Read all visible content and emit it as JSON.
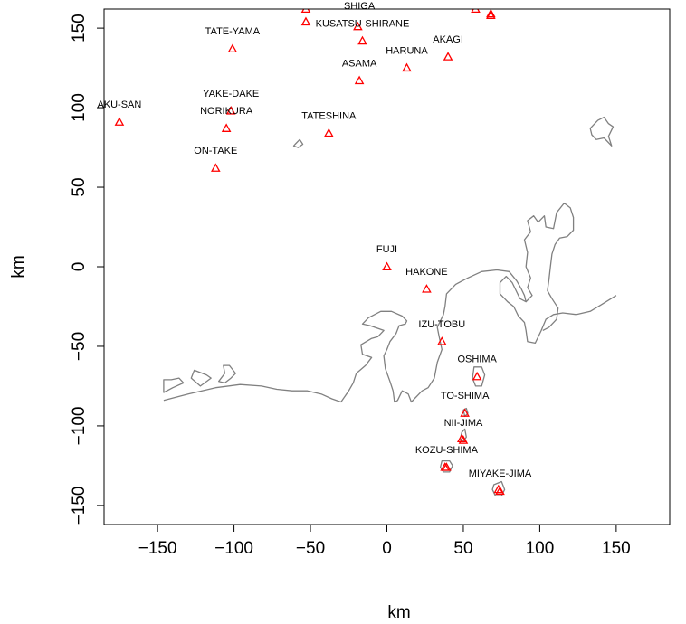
{
  "chart_data": {
    "type": "scatter",
    "xlabel": "km",
    "ylabel": "km",
    "xlim": [
      -185,
      185
    ],
    "ylim": [
      -162,
      162
    ],
    "x_ticks": [
      -150,
      -100,
      -50,
      0,
      50,
      100,
      150
    ],
    "y_ticks": [
      -150,
      -100,
      -50,
      0,
      50,
      100,
      150
    ],
    "tick_labels_x": [
      "−150",
      "−100",
      "−50",
      "0",
      "50",
      "100",
      "150"
    ],
    "tick_labels_y": [
      "−150",
      "−100",
      "−50",
      "0",
      "50",
      "100",
      "150"
    ],
    "marker_color": "#ff0000",
    "coast_color": "#808080",
    "volcanoes": [
      {
        "name": "SHIGA",
        "x": -53,
        "y": 162,
        "lx": -18,
        "ly": 162
      },
      {
        "name": "",
        "x": 58,
        "y": 162,
        "lx": 58,
        "ly": 168
      },
      {
        "name": "",
        "x": 68,
        "y": 159,
        "lx": 68,
        "ly": 168
      },
      {
        "name": "",
        "x": 68,
        "y": 158,
        "lx": 68,
        "ly": 168
      },
      {
        "name": "KUSATSU-SHIRANE",
        "x": -53,
        "y": 154,
        "lx": -16,
        "ly": 151
      },
      {
        "name": "",
        "x": -19,
        "y": 151,
        "lx": -19,
        "ly": 168
      },
      {
        "name": "",
        "x": -16,
        "y": 142,
        "lx": -16,
        "ly": 168
      },
      {
        "name": "TATE-YAMA",
        "x": -101,
        "y": 137,
        "lx": -101,
        "ly": 146
      },
      {
        "name": "AKAGI",
        "x": 40,
        "y": 132,
        "lx": 40,
        "ly": 141
      },
      {
        "name": "HARUNA",
        "x": 13,
        "y": 125,
        "lx": 13,
        "ly": 134
      },
      {
        "name": "ASAMA",
        "x": -18,
        "y": 117,
        "lx": -18,
        "ly": 126
      },
      {
        "name": "YAKE-DAKE",
        "x": -102,
        "y": 98,
        "lx": -102,
        "ly": 107
      },
      {
        "name": "AKU-SAN",
        "x": -175,
        "y": 91,
        "lx": -175,
        "ly": 100
      },
      {
        "name": "NORIKURA",
        "x": -105,
        "y": 87,
        "lx": -105,
        "ly": 96
      },
      {
        "name": "TATESHINA",
        "x": -38,
        "y": 84,
        "lx": -38,
        "ly": 93
      },
      {
        "name": "ON-TAKE",
        "x": -112,
        "y": 62,
        "lx": -112,
        "ly": 71
      },
      {
        "name": "FUJI",
        "x": 0,
        "y": 0,
        "lx": 0,
        "ly": 9
      },
      {
        "name": "HAKONE",
        "x": 26,
        "y": -14,
        "lx": 26,
        "ly": -5
      },
      {
        "name": "IZU-TOBU",
        "x": 36,
        "y": -47,
        "lx": 36,
        "ly": -38
      },
      {
        "name": "OSHIMA",
        "x": 59,
        "y": -69,
        "lx": 59,
        "ly": -60
      },
      {
        "name": "TO-SHIMA",
        "x": 51,
        "y": -92,
        "lx": 51,
        "ly": -83
      },
      {
        "name": "NII-JIMA",
        "x": 50,
        "y": -109,
        "lx": 50,
        "ly": -100
      },
      {
        "name": "",
        "x": 49,
        "y": -108,
        "lx": 49,
        "ly": -168
      },
      {
        "name": "KOZU-SHIMA",
        "x": 39,
        "y": -126,
        "lx": 39,
        "ly": -117
      },
      {
        "name": "",
        "x": 38,
        "y": -126,
        "lx": 38,
        "ly": -168
      },
      {
        "name": "MIYAKE-JIMA",
        "x": 74,
        "y": -141,
        "lx": 74,
        "ly": -132
      },
      {
        "name": "",
        "x": 73,
        "y": -140,
        "lx": 73,
        "ly": -168
      }
    ],
    "coastlines": [
      [
        [
          -146,
          -84
        ],
        [
          -130,
          -80
        ],
        [
          -112,
          -76
        ],
        [
          -96,
          -74
        ],
        [
          -82,
          -75
        ],
        [
          -72,
          -77
        ],
        [
          -62,
          -78
        ],
        [
          -52,
          -78
        ],
        [
          -43,
          -80
        ],
        [
          -36,
          -83
        ],
        [
          -30,
          -85
        ],
        [
          -25,
          -78
        ],
        [
          -22,
          -73
        ],
        [
          -20,
          -67
        ],
        [
          -14,
          -62
        ],
        [
          -10,
          -57
        ],
        [
          -16,
          -55
        ],
        [
          -17,
          -49
        ],
        [
          -10,
          -45
        ],
        [
          -6,
          -44
        ],
        [
          -2,
          -40
        ],
        [
          -11,
          -37
        ],
        [
          -16,
          -36
        ],
        [
          -12,
          -32
        ],
        [
          -4,
          -28
        ],
        [
          3,
          -28
        ],
        [
          10,
          -31
        ],
        [
          13,
          -34
        ],
        [
          12,
          -36
        ],
        [
          8,
          -37
        ],
        [
          6,
          -42
        ],
        [
          2,
          -47
        ],
        [
          0,
          -52
        ],
        [
          -2,
          -56
        ],
        [
          -1,
          -64
        ],
        [
          2,
          -72
        ],
        [
          4,
          -78
        ],
        [
          5,
          -85
        ],
        [
          7,
          -84
        ],
        [
          10,
          -78
        ],
        [
          14,
          -80
        ],
        [
          16,
          -85
        ],
        [
          23,
          -78
        ],
        [
          27,
          -76
        ],
        [
          31,
          -70
        ],
        [
          33,
          -60
        ],
        [
          36,
          -52
        ],
        [
          34,
          -43
        ],
        [
          33,
          -38
        ],
        [
          37,
          -30
        ],
        [
          38,
          -25
        ],
        [
          39,
          -17
        ],
        [
          45,
          -11
        ],
        [
          53,
          -7
        ],
        [
          62,
          -3
        ],
        [
          72,
          -2
        ],
        [
          80,
          -3
        ],
        [
          85,
          -9
        ],
        [
          88,
          -14
        ],
        [
          90,
          -18
        ],
        [
          91,
          -22
        ],
        [
          87,
          -20
        ],
        [
          85,
          -16
        ],
        [
          82,
          -10
        ],
        [
          78,
          -6
        ],
        [
          74,
          -10
        ],
        [
          74,
          -17
        ],
        [
          79,
          -22
        ],
        [
          83,
          -25
        ],
        [
          86,
          -31
        ],
        [
          90,
          -35
        ],
        [
          91,
          -40
        ],
        [
          92,
          -47
        ],
        [
          97,
          -48
        ],
        [
          101,
          -40
        ],
        [
          104,
          -33
        ],
        [
          109,
          -30
        ],
        [
          115,
          -29
        ],
        [
          124,
          -30
        ],
        [
          133,
          -28
        ],
        [
          140,
          -24
        ],
        [
          150,
          -18
        ]
      ],
      [
        [
          91,
          -22
        ],
        [
          95,
          -18
        ],
        [
          92,
          -13
        ],
        [
          94,
          -7
        ],
        [
          91,
          0
        ],
        [
          92,
          9
        ],
        [
          90,
          17
        ],
        [
          94,
          22
        ],
        [
          92,
          29
        ],
        [
          96,
          32
        ],
        [
          99,
          28
        ],
        [
          103,
          32
        ],
        [
          104,
          25
        ],
        [
          109,
          24
        ],
        [
          111,
          34
        ],
        [
          116,
          40
        ],
        [
          120,
          37
        ],
        [
          122,
          31
        ],
        [
          122,
          23
        ],
        [
          118,
          19
        ],
        [
          113,
          18
        ],
        [
          110,
          14
        ],
        [
          108,
          8
        ],
        [
          107,
          0
        ],
        [
          106,
          -8
        ],
        [
          105,
          -15
        ],
        [
          108,
          -20
        ],
        [
          112,
          -26
        ],
        [
          111,
          -33
        ],
        [
          106,
          -38
        ],
        [
          102,
          -40
        ]
      ],
      [
        [
          -146,
          -79
        ],
        [
          -140,
          -76
        ],
        [
          -133,
          -73
        ],
        [
          -136,
          -70
        ],
        [
          -141,
          -71
        ],
        [
          -146,
          -71
        ]
      ],
      [
        [
          -128,
          -70
        ],
        [
          -126,
          -65
        ],
        [
          -118,
          -68
        ],
        [
          -115,
          -70
        ],
        [
          -122,
          -75
        ]
      ],
      [
        [
          -110,
          -72
        ],
        [
          -106,
          -73
        ],
        [
          -102,
          -70
        ],
        [
          -99,
          -67
        ],
        [
          -103,
          -62
        ],
        [
          -107,
          -62
        ],
        [
          -106,
          -67
        ]
      ],
      [
        [
          -60,
          77
        ],
        [
          -57,
          80
        ],
        [
          -55,
          77
        ],
        [
          -58,
          75
        ],
        [
          -61,
          76
        ]
      ],
      [
        [
          133,
          87
        ],
        [
          138,
          92
        ],
        [
          142,
          94
        ],
        [
          145,
          90
        ],
        [
          148,
          88
        ],
        [
          145,
          82
        ],
        [
          147,
          76
        ],
        [
          142,
          81
        ],
        [
          137,
          80
        ],
        [
          134,
          83
        ]
      ],
      [
        [
          57,
          -63
        ],
        [
          62,
          -63
        ],
        [
          64,
          -68
        ],
        [
          62,
          -75
        ],
        [
          58,
          -75
        ],
        [
          56,
          -70
        ]
      ],
      [
        [
          36,
          -122
        ],
        [
          41,
          -122
        ],
        [
          43,
          -125
        ],
        [
          41,
          -129
        ],
        [
          37,
          -129
        ],
        [
          35,
          -126
        ]
      ],
      [
        [
          70,
          -137
        ],
        [
          75,
          -135
        ],
        [
          77,
          -140
        ],
        [
          75,
          -144
        ],
        [
          71,
          -144
        ],
        [
          69,
          -140
        ]
      ],
      [
        [
          49,
          -104
        ],
        [
          51,
          -102
        ],
        [
          52,
          -107
        ],
        [
          50,
          -110
        ],
        [
          48,
          -108
        ]
      ],
      [
        [
          50,
          -90
        ],
        [
          52,
          -89
        ],
        [
          53,
          -92
        ],
        [
          51,
          -94
        ]
      ]
    ]
  }
}
